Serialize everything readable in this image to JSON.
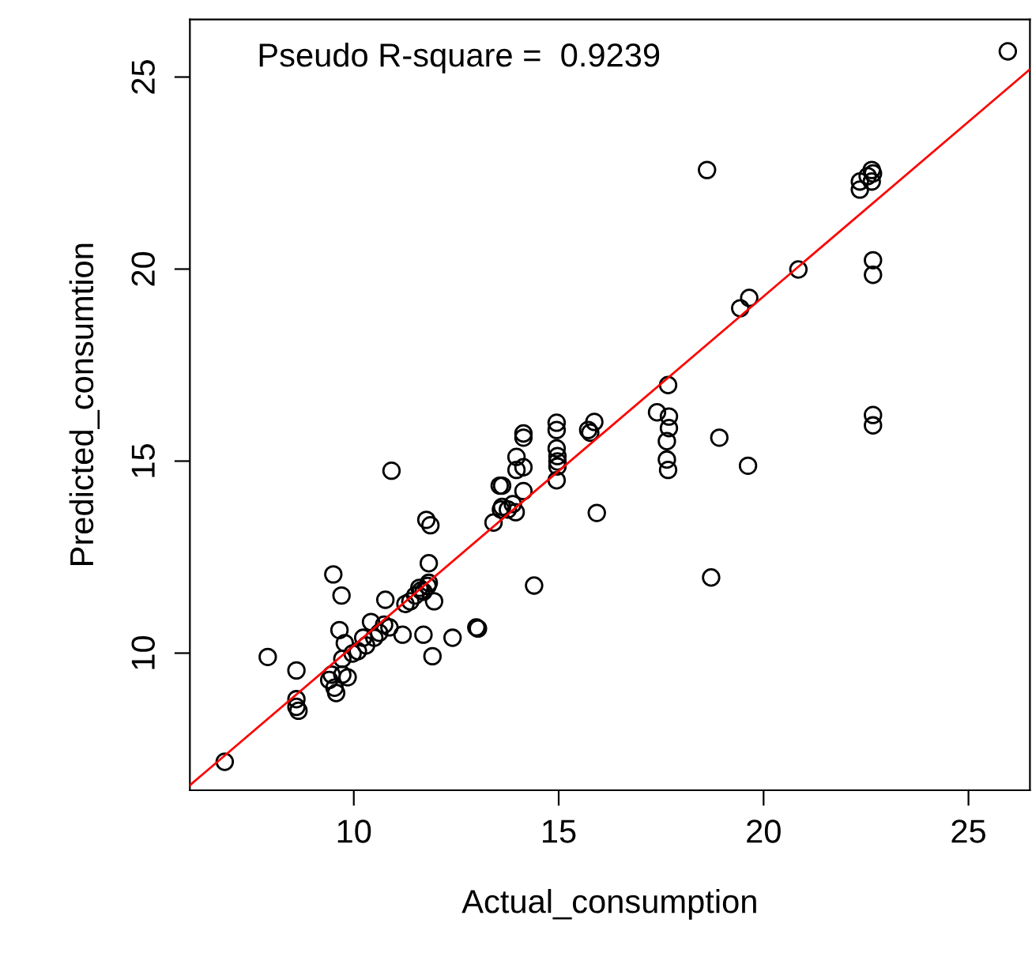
{
  "chart_data": {
    "type": "scatter",
    "xlabel": "Actual_consumption",
    "ylabel": "Predicted_consumtion",
    "annotations": [
      "Pseudo R-square =  0.9239"
    ],
    "xlim": [
      6.0,
      26.5
    ],
    "ylim": [
      6.43,
      26.5
    ],
    "xticks": [
      10,
      15,
      20,
      25
    ],
    "yticks": [
      10,
      15,
      20,
      25
    ],
    "grid": false,
    "legend": false,
    "marker": "circle",
    "series": [
      {
        "color": "#000000",
        "x": [
          6.85,
          7.9,
          8.6,
          8.6,
          8.6,
          8.65,
          9.5,
          9.7,
          10.92,
          9.46,
          9.4,
          9.53,
          9.57,
          9.72,
          9.85,
          9.78,
          9.65,
          9.72,
          9.97,
          10.1,
          10.23,
          10.42,
          10.62,
          10.74,
          10.87,
          11.19,
          11.7,
          12.41,
          12.99,
          11.92,
          10.77,
          11.26,
          11.38,
          11.64,
          11.83,
          11.96,
          11.83,
          11.77,
          11.87,
          13.41,
          13.56,
          13.59,
          10.3,
          10.5,
          11.5,
          11.6,
          11.7,
          11.8,
          17.67,
          17.4,
          17.69,
          17.69,
          17.64,
          17.64,
          17.67,
          18.92,
          19.62,
          18.72,
          15.93,
          14.4,
          13.03,
          15.87,
          15.72,
          15.77,
          14.95,
          14.95,
          14.95,
          14.97,
          14.97,
          14.97,
          14.95,
          14.14,
          14.14,
          13.97,
          14.14,
          13.97,
          13.62,
          14.14,
          13.62,
          13.88,
          13.95,
          13.76,
          25.96,
          18.62,
          22.35,
          22.35,
          22.54,
          22.64,
          22.64,
          22.67,
          22.67,
          22.67,
          20.85,
          19.65,
          19.43,
          22.67,
          22.67
        ],
        "values": [
          7.17,
          9.9,
          9.55,
          8.8,
          8.6,
          8.5,
          12.05,
          11.5,
          14.75,
          9.44,
          9.3,
          9.1,
          8.96,
          9.44,
          9.37,
          10.26,
          10.6,
          9.85,
          9.99,
          10.05,
          10.4,
          10.81,
          10.53,
          10.74,
          10.67,
          10.48,
          10.48,
          10.4,
          10.67,
          9.92,
          11.39,
          11.28,
          11.35,
          11.63,
          11.83,
          11.35,
          12.34,
          13.47,
          13.33,
          13.4,
          14.36,
          13.74,
          10.2,
          10.4,
          11.5,
          11.7,
          11.6,
          11.75,
          16.98,
          16.27,
          16.16,
          15.86,
          15.52,
          15.04,
          14.77,
          15.61,
          14.88,
          11.97,
          13.65,
          11.76,
          10.64,
          16.02,
          15.81,
          15.74,
          16.0,
          15.81,
          15.33,
          15.13,
          14.99,
          14.86,
          14.5,
          15.72,
          15.61,
          15.11,
          14.84,
          14.77,
          14.36,
          14.22,
          13.81,
          13.88,
          13.67,
          13.74,
          25.67,
          22.58,
          22.28,
          22.07,
          22.42,
          22.58,
          22.28,
          22.49,
          20.23,
          19.85,
          19.99,
          19.25,
          18.98,
          16.2,
          15.93
        ]
      },
      {
        "type": "line",
        "color": "#ff0000",
        "marker": "none",
        "x": [
          6.0,
          26.5
        ],
        "values": [
          6.56,
          25.2
        ]
      }
    ]
  }
}
